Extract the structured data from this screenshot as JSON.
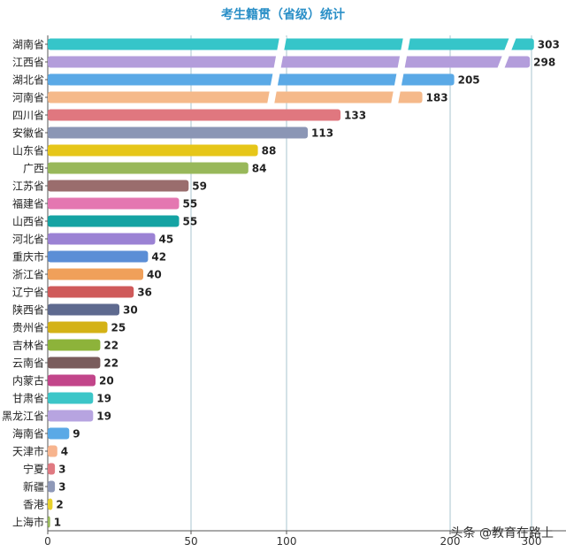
{
  "chart_data": {
    "type": "bar",
    "orientation": "horizontal",
    "title": "考生籍贯（省级）统计",
    "xlabel": "",
    "ylabel": "",
    "axis_break": "broken bars between 100 and 183",
    "x_ticks": [
      "0",
      "50",
      "100",
      "200",
      "300"
    ],
    "grid": true,
    "legend": "none",
    "categories": [
      "湖南省",
      "江西省",
      "湖北省",
      "河南省",
      "四川省",
      "安徽省",
      "山东省",
      "广西",
      "江苏省",
      "福建省",
      "山西省",
      "河北省",
      "重庆市",
      "浙江省",
      "辽宁省",
      "陕西省",
      "贵州省",
      "吉林省",
      "云南省",
      "内蒙古",
      "甘肃省",
      "黑龙江省",
      "海南省",
      "天津市",
      "宁夏",
      "新疆",
      "香港",
      "上海市"
    ],
    "values": [
      303,
      298,
      205,
      183,
      133,
      113,
      88,
      84,
      59,
      55,
      55,
      45,
      42,
      40,
      36,
      30,
      25,
      22,
      22,
      20,
      19,
      19,
      9,
      4,
      3,
      3,
      2,
      1
    ],
    "colors": [
      "#36c5c9",
      "#b39ddb",
      "#5aa9e6",
      "#f5b98a",
      "#e0777f",
      "#8b96b5",
      "#e6c619",
      "#98b85a",
      "#9a6d6d",
      "#e477b1",
      "#14a3a3",
      "#9b82d4",
      "#5b8ed6",
      "#f0a05a",
      "#cf5a5a",
      "#5e6a8f",
      "#d4b216",
      "#8db33a",
      "#7a5c5c",
      "#c2458a",
      "#3cc6c8",
      "#b7a4e0",
      "#5aa9e6",
      "#f7b48e",
      "#e07a82",
      "#8f99b8",
      "#e8d12b",
      "#98b85a"
    ]
  },
  "watermark": "头条 @教育在路上"
}
